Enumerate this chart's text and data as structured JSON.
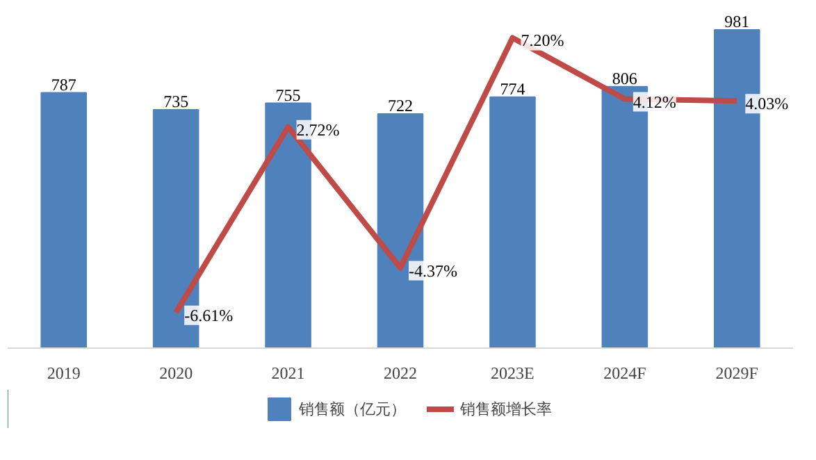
{
  "chart_data": {
    "type": "bar",
    "categories": [
      "2019",
      "2020",
      "2021",
      "2022",
      "2023E",
      "2024F",
      "2029F"
    ],
    "series": [
      {
        "name": "销售额（亿元）",
        "color": "#4f81bd",
        "values": [
          787,
          735,
          755,
          722,
          774,
          806,
          981
        ],
        "value_labels": [
          "787",
          "735",
          "755",
          "722",
          "774",
          "806",
          "981"
        ]
      },
      {
        "name": "销售额增长率",
        "type": "line",
        "axis": "y2",
        "color": "#be4b48",
        "values": [
          null,
          -6.61,
          2.72,
          -4.37,
          7.2,
          4.12,
          4.03
        ],
        "value_labels": [
          null,
          "-6.61%",
          "2.72%",
          "-4.37%",
          "7.20%",
          "4.12%",
          "4.03%"
        ]
      }
    ],
    "tick_labels": "x",
    "grid": false,
    "legend": "bottom",
    "marker": "none",
    "line_style": "solid"
  }
}
